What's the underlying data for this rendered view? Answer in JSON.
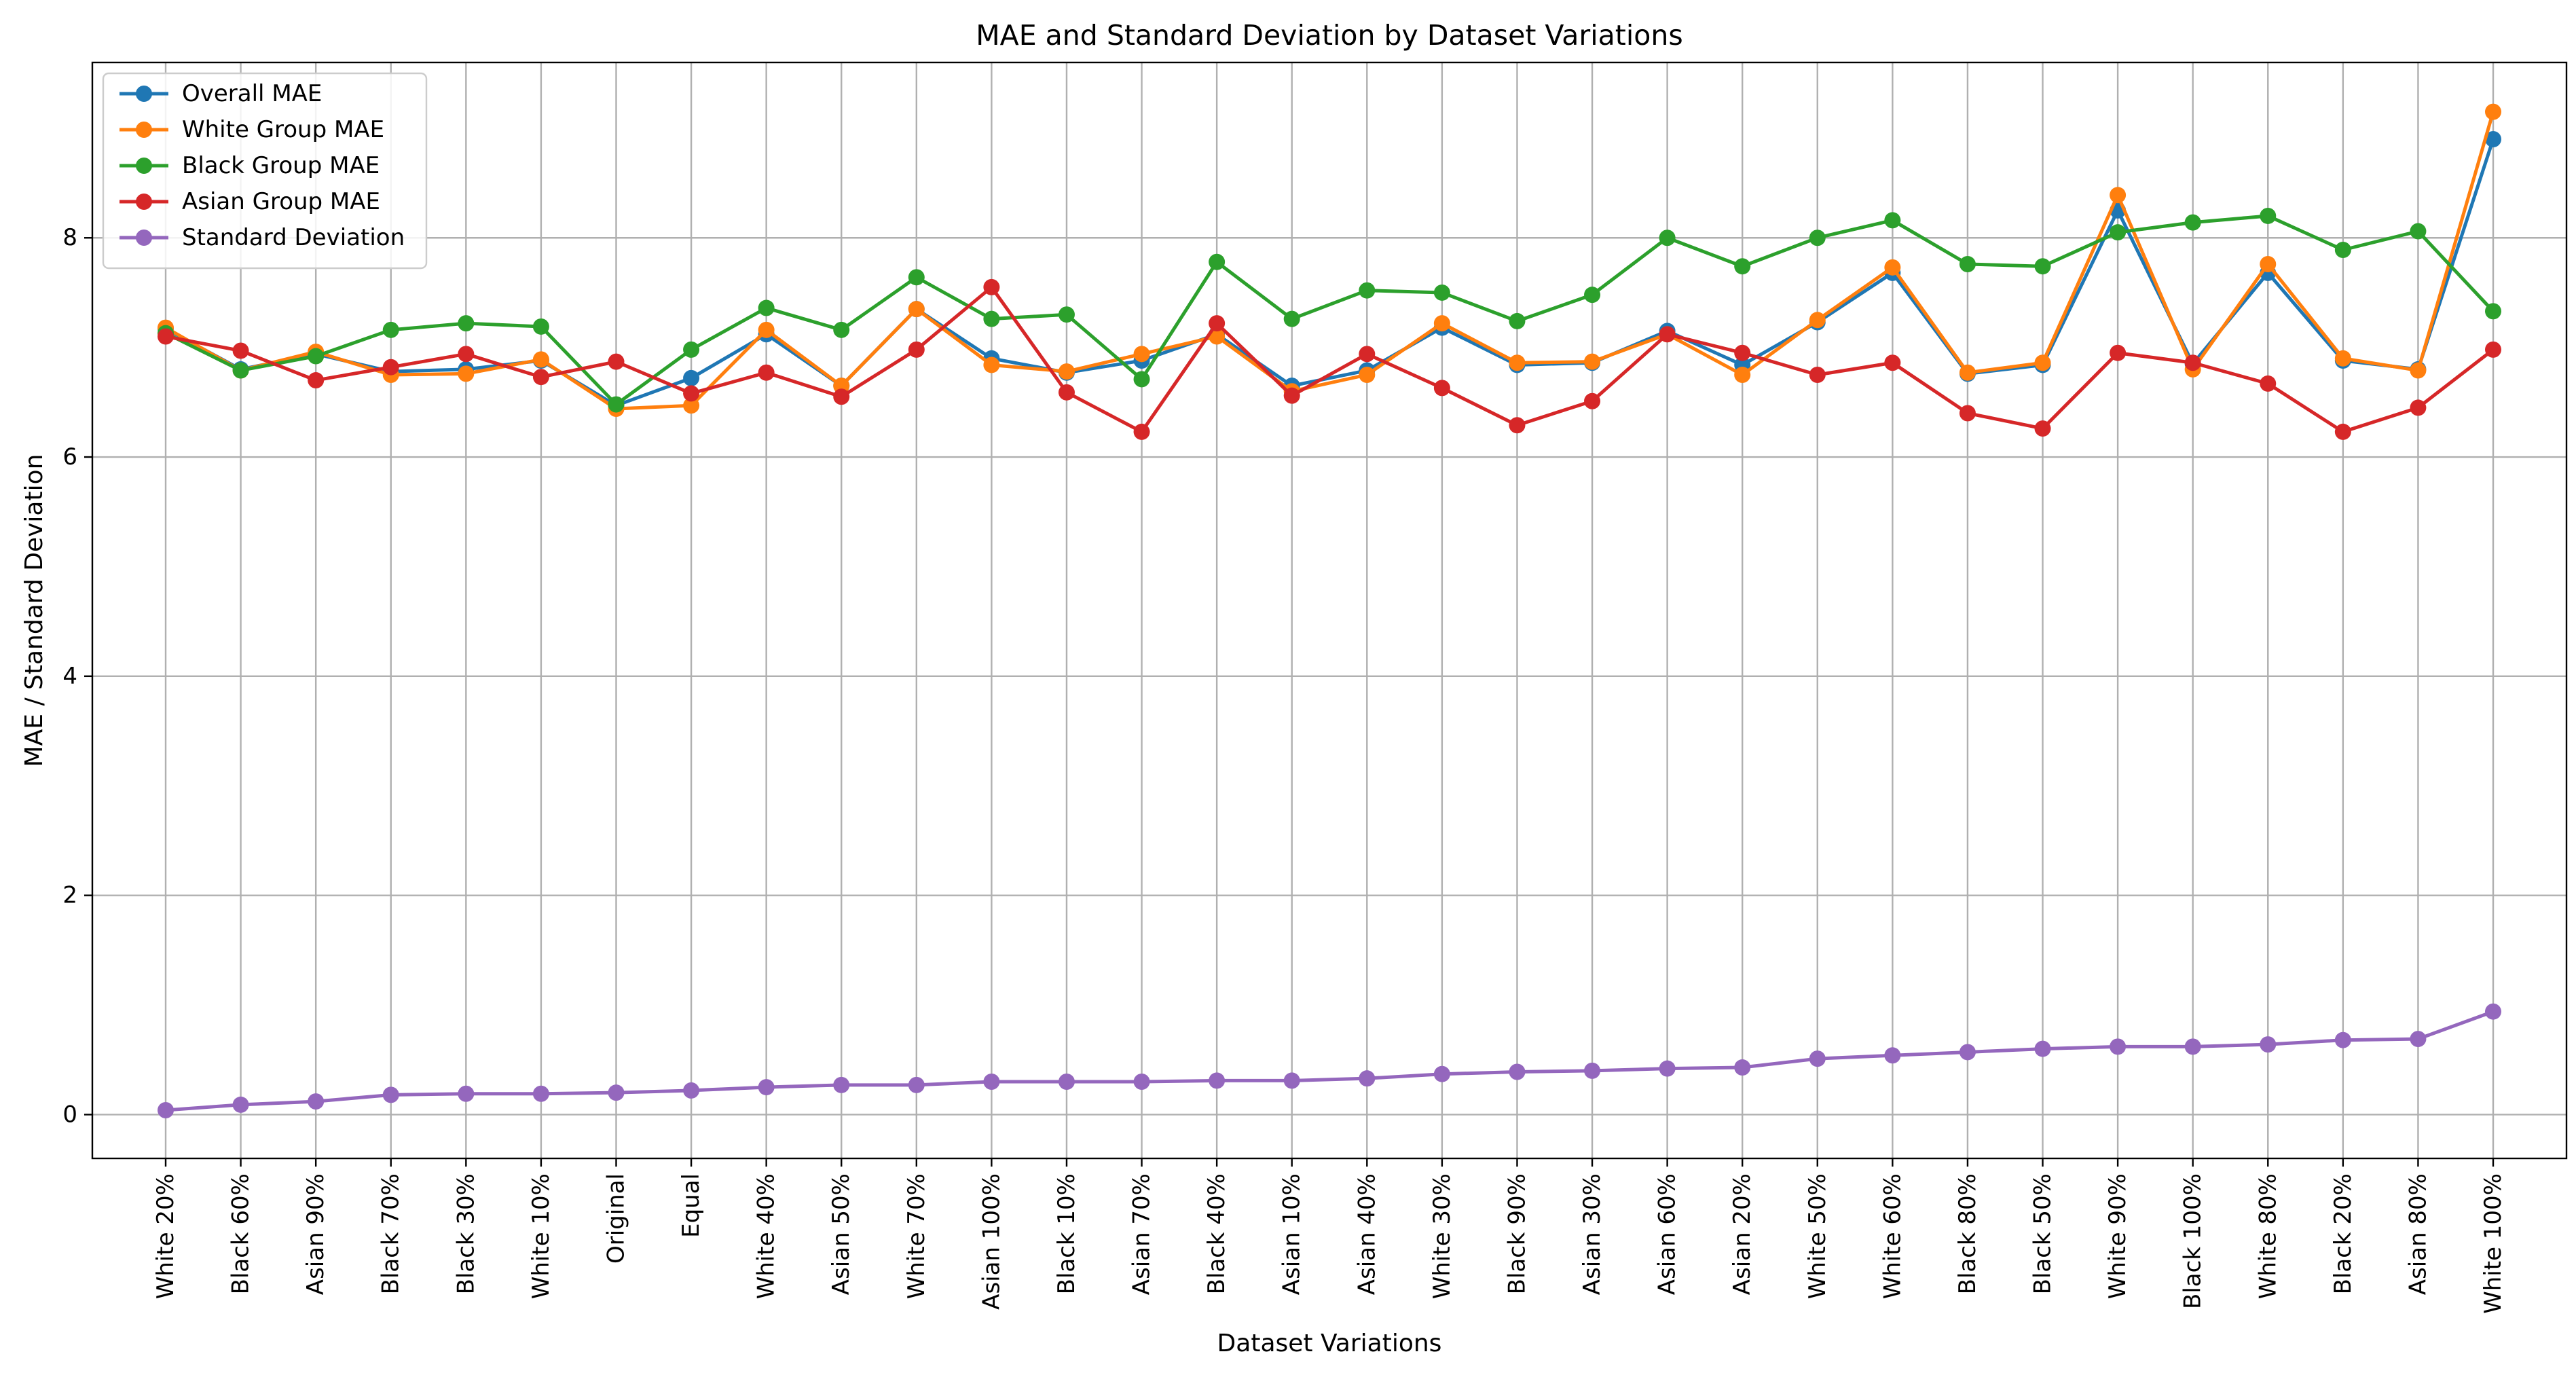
{
  "chart_data": {
    "type": "line",
    "title": "MAE and Standard Deviation by Dataset Variations",
    "xlabel": "Dataset Variations",
    "ylabel": "MAE / Standard Deviation",
    "ylim": [
      -0.4,
      9.6
    ],
    "yticks": [
      0,
      2,
      4,
      6,
      8
    ],
    "grid": true,
    "legend_position": "top-left",
    "categories": [
      "White 20%",
      "Black 60%",
      "Asian 90%",
      "Black 70%",
      "Black 30%",
      "White 10%",
      "Original",
      "Equal",
      "White 40%",
      "Asian 50%",
      "White 70%",
      "Asian 100%",
      "Black 10%",
      "Asian 70%",
      "Black 40%",
      "Asian 10%",
      "Asian 40%",
      "White 30%",
      "Black 90%",
      "Asian 30%",
      "Asian 60%",
      "Asian 20%",
      "White 50%",
      "White 60%",
      "Black 80%",
      "Black 50%",
      "White 90%",
      "Black 100%",
      "White 80%",
      "Black 20%",
      "Asian 80%",
      "White 100%"
    ],
    "series": [
      {
        "name": "Overall MAE",
        "color": "#1f77b4",
        "values": [
          7.17,
          6.8,
          6.94,
          6.78,
          6.8,
          6.88,
          6.47,
          6.72,
          7.12,
          6.65,
          7.35,
          6.9,
          6.77,
          6.88,
          7.12,
          6.65,
          6.79,
          7.18,
          6.84,
          6.86,
          7.15,
          6.84,
          7.23,
          7.68,
          6.76,
          6.84,
          8.25,
          6.85,
          7.68,
          6.88,
          6.8,
          8.9
        ]
      },
      {
        "name": "White Group MAE",
        "color": "#ff7f0e",
        "values": [
          7.18,
          6.79,
          6.96,
          6.75,
          6.76,
          6.89,
          6.44,
          6.47,
          7.16,
          6.65,
          7.35,
          6.84,
          6.78,
          6.94,
          7.1,
          6.6,
          6.75,
          7.22,
          6.86,
          6.87,
          7.12,
          6.75,
          7.25,
          7.73,
          6.77,
          6.86,
          8.39,
          6.8,
          7.76,
          6.9,
          6.79,
          9.15
        ]
      },
      {
        "name": "Black Group MAE",
        "color": "#2ca02c",
        "values": [
          7.13,
          6.79,
          6.92,
          7.16,
          7.22,
          7.19,
          6.48,
          6.98,
          7.36,
          7.16,
          7.64,
          7.26,
          7.3,
          6.71,
          7.78,
          7.26,
          7.52,
          7.5,
          7.24,
          7.48,
          8.0,
          7.74,
          8.0,
          8.16,
          7.76,
          7.74,
          8.05,
          8.14,
          8.2,
          7.89,
          8.06,
          7.33
        ]
      },
      {
        "name": "Asian Group MAE",
        "color": "#d62728",
        "values": [
          7.1,
          6.97,
          6.7,
          6.82,
          6.94,
          6.73,
          6.87,
          6.58,
          6.77,
          6.55,
          6.98,
          7.55,
          6.59,
          6.23,
          7.22,
          6.56,
          6.94,
          6.63,
          6.29,
          6.51,
          7.12,
          6.95,
          6.75,
          6.86,
          6.4,
          6.26,
          6.95,
          6.86,
          6.67,
          6.23,
          6.45,
          6.98
        ]
      },
      {
        "name": "Standard Deviation",
        "color": "#9467bd",
        "values": [
          0.04,
          0.09,
          0.12,
          0.18,
          0.19,
          0.19,
          0.2,
          0.22,
          0.25,
          0.27,
          0.27,
          0.3,
          0.3,
          0.3,
          0.31,
          0.31,
          0.33,
          0.37,
          0.39,
          0.4,
          0.42,
          0.43,
          0.51,
          0.54,
          0.57,
          0.6,
          0.62,
          0.62,
          0.64,
          0.68,
          0.69,
          0.94
        ]
      }
    ]
  }
}
